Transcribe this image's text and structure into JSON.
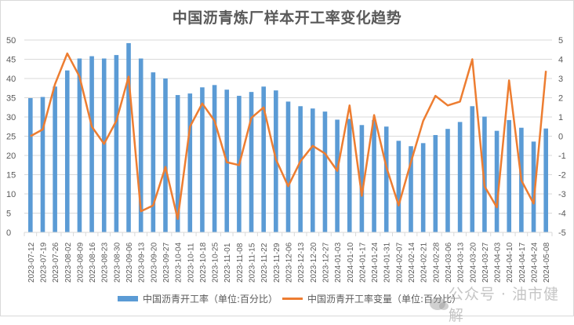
{
  "chart_data": {
    "type": "bar+line",
    "title": "中国沥青炼厂样本开工率变化趋势",
    "categories": [
      "2023-07-12",
      "2023-07-19",
      "2023-07-26",
      "2023-08-02",
      "2023-08-09",
      "2023-08-16",
      "2023-08-23",
      "2023-08-30",
      "2023-09-06",
      "2023-09-13",
      "2023-09-20",
      "2023-09-27",
      "2023-10-04",
      "2023-10-11",
      "2023-10-18",
      "2023-10-25",
      "2023-11-01",
      "2023-11-08",
      "2023-11-15",
      "2023-11-22",
      "2023-11-29",
      "2023-12-06",
      "2023-12-13",
      "2023-12-20",
      "2023-12-27",
      "2024-01-03",
      "2024-01-10",
      "2024-01-17",
      "2024-01-24",
      "2024-01-31",
      "2024-02-07",
      "2024-02-14",
      "2024-02-21",
      "2024-02-28",
      "2024-03-06",
      "2024-03-13",
      "2024-03-20",
      "2024-03-27",
      "2024-04-03",
      "2024-04-10",
      "2024-04-17",
      "2024-04-24",
      "2024-05-08"
    ],
    "series": [
      {
        "name": "中国沥青开工率（单位:百分比）",
        "type": "bar",
        "axis": "left",
        "color": "#5b9bd5",
        "values": [
          34.9,
          35.2,
          37.9,
          42.1,
          45.2,
          45.8,
          45.2,
          46.1,
          49.2,
          45.2,
          41.6,
          40.0,
          35.7,
          36.1,
          37.7,
          38.3,
          37.1,
          35.5,
          36.5,
          37.9,
          36.9,
          34.0,
          32.8,
          32.2,
          31.4,
          29.3,
          29.5,
          27.9,
          29.2,
          27.5,
          23.8,
          22.4,
          23.2,
          25.3,
          26.9,
          28.7,
          32.8,
          30.1,
          26.4,
          29.2,
          27.2,
          23.6,
          27.0
        ]
      },
      {
        "name": "中国沥青开工率变量（单位:百分比）",
        "type": "line",
        "axis": "right",
        "color": "#ed7d31",
        "values": [
          0.0,
          0.35,
          2.7,
          4.3,
          3.1,
          0.5,
          -0.4,
          0.8,
          3.1,
          -3.9,
          -3.6,
          -1.6,
          -4.3,
          0.5,
          1.7,
          0.8,
          -1.35,
          -1.5,
          0.95,
          1.5,
          -1.2,
          -2.6,
          -1.3,
          -0.5,
          -0.9,
          -1.8,
          1.6,
          -3.1,
          1.1,
          -1.6,
          -3.6,
          -1.35,
          0.8,
          2.1,
          1.6,
          1.8,
          4.0,
          -2.6,
          -3.7,
          2.9,
          -2.3,
          -3.5,
          3.4
        ]
      }
    ],
    "ylim_left": [
      0,
      50
    ],
    "yticks_left": [
      0,
      5,
      10,
      15,
      20,
      25,
      30,
      35,
      40,
      45,
      50
    ],
    "ylim_right": [
      -5,
      5
    ],
    "yticks_right": [
      -5,
      -4,
      -3,
      -2,
      -1,
      0,
      1,
      2,
      3,
      4,
      5
    ],
    "xlabel": "",
    "ylabel": "",
    "grid": true,
    "legend_position": "bottom"
  },
  "legend": {
    "bar_label": "中国沥青开工率（单位:百分比）",
    "line_label": "中国沥青开工率变量（单位:百分比）"
  },
  "watermark": {
    "text": "公众号 · 油市健解"
  }
}
